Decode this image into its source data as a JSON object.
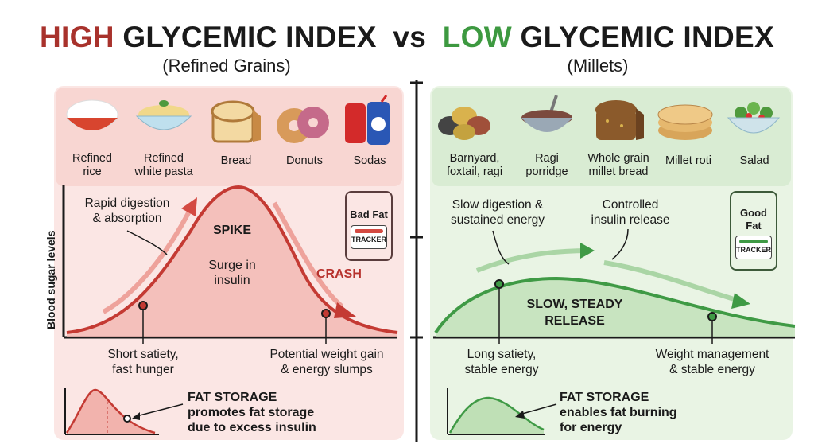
{
  "title": {
    "high": "HIGH",
    "high_rest": "GLYCEMIC INDEX",
    "vs": "vs",
    "low": "LOW",
    "low_rest": "GLYCEMIC INDEX"
  },
  "subtitle_left": "(Refined Grains)",
  "subtitle_right": "(Millets)",
  "y_axis_label": "Blood sugar levels",
  "left": {
    "foods": [
      {
        "icon": "rice-bowl-icon",
        "label": "Refined\nrice"
      },
      {
        "icon": "pasta-bowl-icon",
        "label": "Refined\nwhite pasta"
      },
      {
        "icon": "bread-icon",
        "label": "Bread"
      },
      {
        "icon": "donut-icon",
        "label": "Donuts"
      },
      {
        "icon": "soda-can-icon",
        "label": "Sodas"
      }
    ],
    "rapid": "Rapid digestion\n& absorption",
    "spike": "SPIKE",
    "surge": "Surge in\ninsulin",
    "crash": "CRASH",
    "tracker_title": "Bad Fat",
    "tracker_label": "TRACKER",
    "short_satiety": "Short satiety,\nfast hunger",
    "weight_gain": "Potential weight gain\n& energy slumps",
    "fat_title": "FAT STORAGE",
    "fat_desc": "promotes fat storage\ndue to excess insulin",
    "colors": {
      "accent": "#c43a33",
      "panel": "#fbe6e4",
      "band": "#f8d6d2"
    }
  },
  "right": {
    "foods": [
      {
        "icon": "millet-grains-icon",
        "label": "Barnyard,\nfoxtail, ragi"
      },
      {
        "icon": "porridge-bowl-icon",
        "label": "Ragi\nporridge"
      },
      {
        "icon": "whole-grain-bread-icon",
        "label": "Whole grain\nmillet bread"
      },
      {
        "icon": "roti-icon",
        "label": "Millet roti"
      },
      {
        "icon": "salad-bowl-icon",
        "label": "Salad"
      }
    ],
    "slow_digestion": "Slow digestion &\nsustained energy",
    "controlled": "Controlled\ninsulin release",
    "steady": "SLOW, STEADY\nRELEASE",
    "tracker_title": "Good\nFat",
    "tracker_label": "TRACKER",
    "long_satiety": "Long satiety,\nstable energy",
    "weight_mgmt": "Weight management\n& stable energy",
    "fat_title": "FAT STORAGE",
    "fat_desc": "enables fat burning\nfor energy",
    "colors": {
      "accent": "#3f9a45",
      "panel": "#e9f4e4",
      "band": "#d9ecd3"
    }
  }
}
